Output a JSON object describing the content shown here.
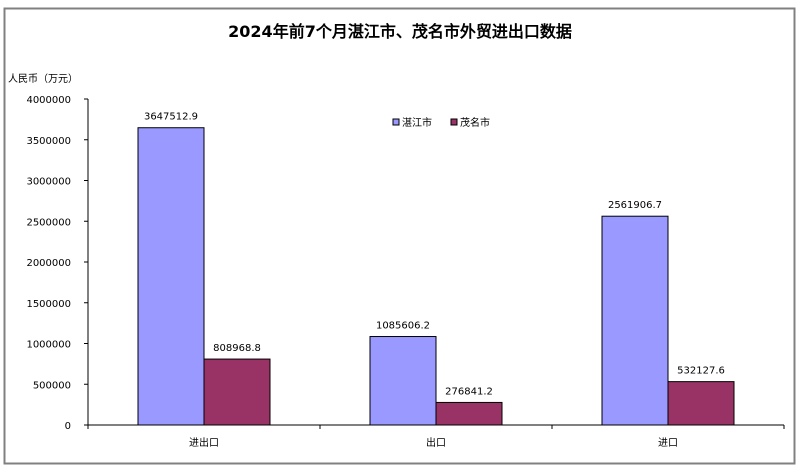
{
  "chart_data": {
    "type": "bar",
    "title": "2024年前7个月湛江市、茂名市外贸进出口数据",
    "ylabel": "人民币（万元）",
    "xlabel": "",
    "categories": [
      "进出口",
      "出口",
      "进口"
    ],
    "series": [
      {
        "name": "湛江市",
        "color": "#9999ff",
        "values": [
          3647512.9,
          1085606.2,
          2561906.7
        ],
        "labels": [
          "3647512.9",
          "1085606.2",
          "2561906.7"
        ]
      },
      {
        "name": "茂名市",
        "color": "#993366",
        "values": [
          808968.8,
          276841.2,
          532127.6
        ],
        "labels": [
          "808968.8",
          "276841.2",
          "532127.6"
        ]
      }
    ],
    "ylim": [
      0,
      4000000
    ],
    "yticks": [
      "0",
      "500000",
      "1000000",
      "1500000",
      "2000000",
      "2500000",
      "3000000",
      "3500000",
      "4000000"
    ],
    "grid": false,
    "legend_placement": "top-center"
  }
}
